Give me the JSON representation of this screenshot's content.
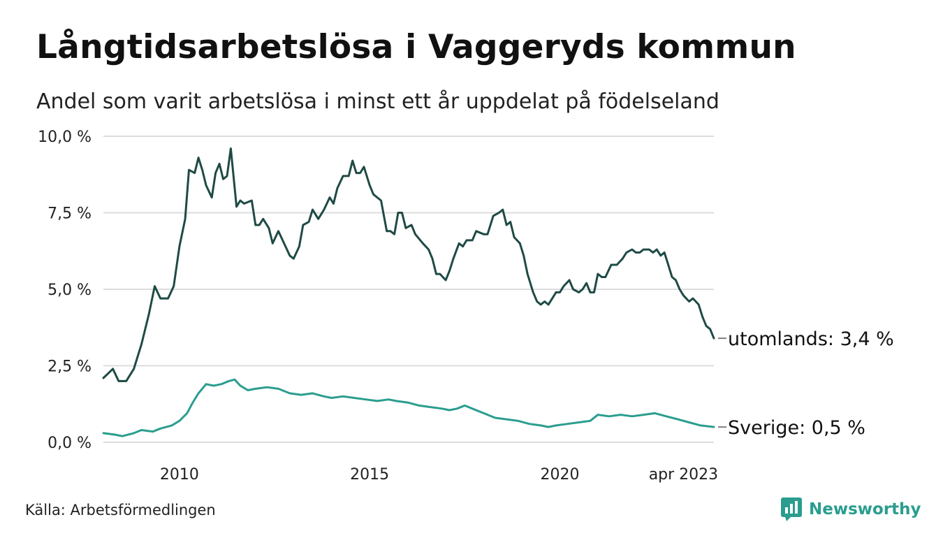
{
  "title": "Långtidsarbetslösa i Vaggeryds kommun",
  "subtitle": "Andel som varit arbetslösa i minst ett år uppdelat på födelseland",
  "source": "Källa: Arbetsförmedlingen",
  "brand": "Newsworthy",
  "colors": {
    "utomlands": "#1f4a45",
    "sverige": "#2a9d8f",
    "grid": "#dcdcdc",
    "brand": "#2a9d8f"
  },
  "chart_data": {
    "type": "line",
    "x_start": "2008-01",
    "x_end": "2023-04",
    "ylim": [
      0,
      10
    ],
    "y_ticks": [
      0,
      2.5,
      5,
      7.5,
      10
    ],
    "y_tick_labels": [
      "0,0 %",
      "2,5 %",
      "5,0 %",
      "7,5 %",
      "10,0 %"
    ],
    "x_tick_labels": [
      {
        "label": "2010",
        "year": 2010
      },
      {
        "label": "2015",
        "year": 2015
      },
      {
        "label": "2020",
        "year": 2020
      },
      {
        "label": "apr 2023",
        "year": 2023.25
      }
    ],
    "grid": true,
    "series": [
      {
        "name": "utomlands",
        "end_label": "utomlands: 3,4 %",
        "color": "#1f4a45",
        "points": [
          [
            2008.0,
            2.1
          ],
          [
            2008.25,
            2.4
          ],
          [
            2008.4,
            2.0
          ],
          [
            2008.6,
            2.0
          ],
          [
            2008.8,
            2.4
          ],
          [
            2009.0,
            3.2
          ],
          [
            2009.2,
            4.2
          ],
          [
            2009.35,
            5.1
          ],
          [
            2009.5,
            4.7
          ],
          [
            2009.7,
            4.7
          ],
          [
            2009.85,
            5.1
          ],
          [
            2010.0,
            6.4
          ],
          [
            2010.15,
            7.3
          ],
          [
            2010.25,
            8.9
          ],
          [
            2010.4,
            8.8
          ],
          [
            2010.5,
            9.3
          ],
          [
            2010.6,
            8.9
          ],
          [
            2010.7,
            8.4
          ],
          [
            2010.85,
            8.0
          ],
          [
            2010.95,
            8.8
          ],
          [
            2011.05,
            9.1
          ],
          [
            2011.15,
            8.6
          ],
          [
            2011.25,
            8.7
          ],
          [
            2011.35,
            9.6
          ],
          [
            2011.5,
            7.7
          ],
          [
            2011.6,
            7.9
          ],
          [
            2011.7,
            7.8
          ],
          [
            2011.9,
            7.9
          ],
          [
            2012.0,
            7.1
          ],
          [
            2012.1,
            7.1
          ],
          [
            2012.2,
            7.3
          ],
          [
            2012.35,
            7.0
          ],
          [
            2012.45,
            6.5
          ],
          [
            2012.6,
            6.9
          ],
          [
            2012.75,
            6.5
          ],
          [
            2012.9,
            6.1
          ],
          [
            2013.0,
            6.0
          ],
          [
            2013.15,
            6.4
          ],
          [
            2013.25,
            7.1
          ],
          [
            2013.4,
            7.2
          ],
          [
            2013.5,
            7.6
          ],
          [
            2013.65,
            7.3
          ],
          [
            2013.8,
            7.6
          ],
          [
            2013.95,
            8.0
          ],
          [
            2014.05,
            7.8
          ],
          [
            2014.15,
            8.3
          ],
          [
            2014.3,
            8.7
          ],
          [
            2014.45,
            8.7
          ],
          [
            2014.55,
            9.2
          ],
          [
            2014.65,
            8.8
          ],
          [
            2014.75,
            8.8
          ],
          [
            2014.85,
            9.0
          ],
          [
            2015.0,
            8.4
          ],
          [
            2015.1,
            8.1
          ],
          [
            2015.3,
            7.9
          ],
          [
            2015.45,
            6.9
          ],
          [
            2015.55,
            6.9
          ],
          [
            2015.65,
            6.8
          ],
          [
            2015.75,
            7.5
          ],
          [
            2015.85,
            7.5
          ],
          [
            2015.95,
            7.0
          ],
          [
            2016.1,
            7.1
          ],
          [
            2016.2,
            6.8
          ],
          [
            2016.4,
            6.5
          ],
          [
            2016.55,
            6.3
          ],
          [
            2016.65,
            6.0
          ],
          [
            2016.75,
            5.5
          ],
          [
            2016.85,
            5.5
          ],
          [
            2017.0,
            5.3
          ],
          [
            2017.1,
            5.6
          ],
          [
            2017.2,
            6.0
          ],
          [
            2017.35,
            6.5
          ],
          [
            2017.45,
            6.4
          ],
          [
            2017.55,
            6.6
          ],
          [
            2017.7,
            6.6
          ],
          [
            2017.8,
            6.9
          ],
          [
            2018.0,
            6.8
          ],
          [
            2018.1,
            6.8
          ],
          [
            2018.25,
            7.4
          ],
          [
            2018.4,
            7.5
          ],
          [
            2018.5,
            7.6
          ],
          [
            2018.6,
            7.1
          ],
          [
            2018.7,
            7.2
          ],
          [
            2018.8,
            6.7
          ],
          [
            2018.95,
            6.5
          ],
          [
            2019.05,
            6.1
          ],
          [
            2019.15,
            5.5
          ],
          [
            2019.3,
            4.9
          ],
          [
            2019.4,
            4.6
          ],
          [
            2019.5,
            4.5
          ],
          [
            2019.6,
            4.6
          ],
          [
            2019.7,
            4.5
          ],
          [
            2019.9,
            4.9
          ],
          [
            2020.0,
            4.9
          ],
          [
            2020.1,
            5.1
          ],
          [
            2020.25,
            5.3
          ],
          [
            2020.35,
            5.0
          ],
          [
            2020.5,
            4.9
          ],
          [
            2020.6,
            5.0
          ],
          [
            2020.7,
            5.2
          ],
          [
            2020.8,
            4.9
          ],
          [
            2020.9,
            4.9
          ],
          [
            2021.0,
            5.5
          ],
          [
            2021.1,
            5.4
          ],
          [
            2021.2,
            5.4
          ],
          [
            2021.35,
            5.8
          ],
          [
            2021.5,
            5.8
          ],
          [
            2021.65,
            6.0
          ],
          [
            2021.75,
            6.2
          ],
          [
            2021.9,
            6.3
          ],
          [
            2022.0,
            6.2
          ],
          [
            2022.1,
            6.2
          ],
          [
            2022.2,
            6.3
          ],
          [
            2022.35,
            6.3
          ],
          [
            2022.45,
            6.2
          ],
          [
            2022.55,
            6.3
          ],
          [
            2022.65,
            6.1
          ],
          [
            2022.75,
            6.2
          ],
          [
            2022.85,
            5.8
          ],
          [
            2022.95,
            5.4
          ],
          [
            2023.05,
            5.3
          ],
          [
            2023.15,
            5.0
          ],
          [
            2023.25,
            4.8
          ],
          [
            2023.4,
            4.6
          ],
          [
            2023.5,
            4.7
          ],
          [
            2023.65,
            4.5
          ],
          [
            2023.75,
            4.1
          ],
          [
            2023.85,
            3.8
          ],
          [
            2023.95,
            3.7
          ],
          [
            2024.05,
            3.4
          ]
        ]
      },
      {
        "name": "Sverige",
        "end_label": "Sverige: 0,5 %",
        "color": "#2a9d8f",
        "points": [
          [
            2008.0,
            0.3
          ],
          [
            2008.3,
            0.25
          ],
          [
            2008.5,
            0.2
          ],
          [
            2008.8,
            0.3
          ],
          [
            2009.0,
            0.4
          ],
          [
            2009.3,
            0.35
          ],
          [
            2009.5,
            0.45
          ],
          [
            2009.8,
            0.55
          ],
          [
            2010.0,
            0.7
          ],
          [
            2010.2,
            0.95
          ],
          [
            2010.35,
            1.3
          ],
          [
            2010.5,
            1.6
          ],
          [
            2010.7,
            1.9
          ],
          [
            2010.9,
            1.85
          ],
          [
            2011.1,
            1.9
          ],
          [
            2011.3,
            2.0
          ],
          [
            2011.45,
            2.05
          ],
          [
            2011.6,
            1.85
          ],
          [
            2011.8,
            1.7
          ],
          [
            2012.0,
            1.75
          ],
          [
            2012.3,
            1.8
          ],
          [
            2012.6,
            1.75
          ],
          [
            2012.9,
            1.6
          ],
          [
            2013.2,
            1.55
          ],
          [
            2013.5,
            1.6
          ],
          [
            2013.8,
            1.5
          ],
          [
            2014.0,
            1.45
          ],
          [
            2014.3,
            1.5
          ],
          [
            2014.6,
            1.45
          ],
          [
            2014.9,
            1.4
          ],
          [
            2015.2,
            1.35
          ],
          [
            2015.5,
            1.4
          ],
          [
            2015.7,
            1.35
          ],
          [
            2016.0,
            1.3
          ],
          [
            2016.3,
            1.2
          ],
          [
            2016.6,
            1.15
          ],
          [
            2016.9,
            1.1
          ],
          [
            2017.1,
            1.05
          ],
          [
            2017.3,
            1.1
          ],
          [
            2017.5,
            1.2
          ],
          [
            2017.7,
            1.1
          ],
          [
            2018.0,
            0.95
          ],
          [
            2018.3,
            0.8
          ],
          [
            2018.6,
            0.75
          ],
          [
            2018.9,
            0.7
          ],
          [
            2019.2,
            0.6
          ],
          [
            2019.5,
            0.55
          ],
          [
            2019.7,
            0.5
          ],
          [
            2019.9,
            0.55
          ],
          [
            2020.2,
            0.6
          ],
          [
            2020.5,
            0.65
          ],
          [
            2020.8,
            0.7
          ],
          [
            2021.0,
            0.9
          ],
          [
            2021.3,
            0.85
          ],
          [
            2021.6,
            0.9
          ],
          [
            2021.9,
            0.85
          ],
          [
            2022.2,
            0.9
          ],
          [
            2022.5,
            0.95
          ],
          [
            2022.8,
            0.85
          ],
          [
            2023.1,
            0.75
          ],
          [
            2023.4,
            0.65
          ],
          [
            2023.7,
            0.55
          ],
          [
            2024.05,
            0.5
          ]
        ]
      }
    ]
  }
}
